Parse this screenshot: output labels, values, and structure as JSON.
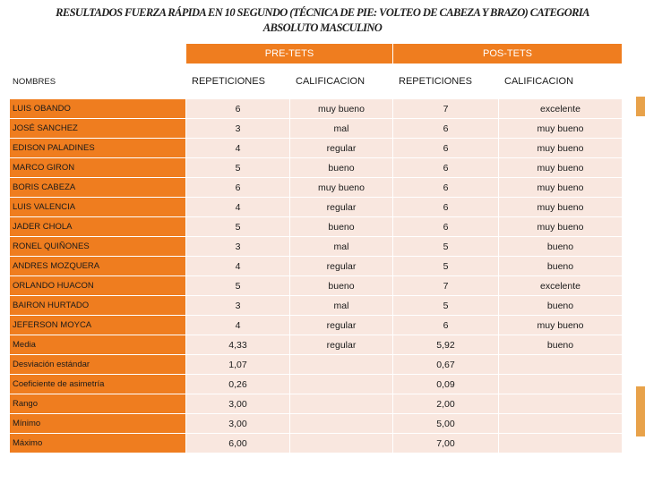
{
  "title_line1": "RESULTADOS FUERZA RÁPIDA EN 10 SEGUNDO (TÉCNICA DE PIE: VOLTEO DE CABEZA Y BRAZO) CATEGORIA",
  "title_line2": "ABSOLUTO MASCULINO",
  "header": {
    "pre": "PRE-TETS",
    "pos": "POS-TETS",
    "nombres": "NOMBRES",
    "pre_rep": "REPETICIONES",
    "pre_cal": "CALIFICACION",
    "pos_rep": "REPETICIONES",
    "pos_cal": "CALIFICACION"
  },
  "rows": [
    {
      "name": "LUIS OBANDO",
      "pre_rep": "6",
      "pre_cal": "muy bueno",
      "pos_rep": "7",
      "pos_cal": "excelente"
    },
    {
      "name": "JOSÉ SANCHEZ",
      "pre_rep": "3",
      "pre_cal": "mal",
      "pos_rep": "6",
      "pos_cal": "muy bueno"
    },
    {
      "name": "EDISON PALADINES",
      "pre_rep": "4",
      "pre_cal": "regular",
      "pos_rep": "6",
      "pos_cal": "muy bueno"
    },
    {
      "name": "MARCO GIRON",
      "pre_rep": "5",
      "pre_cal": "bueno",
      "pos_rep": "6",
      "pos_cal": "muy bueno"
    },
    {
      "name": "BORIS CABEZA",
      "pre_rep": "6",
      "pre_cal": "muy bueno",
      "pos_rep": "6",
      "pos_cal": "muy bueno"
    },
    {
      "name": "LUIS VALENCIA",
      "pre_rep": "4",
      "pre_cal": "regular",
      "pos_rep": "6",
      "pos_cal": "muy bueno"
    },
    {
      "name": "JADER CHOLA",
      "pre_rep": "5",
      "pre_cal": "bueno",
      "pos_rep": "6",
      "pos_cal": "muy bueno"
    },
    {
      "name": "RONEL QUIÑONES",
      "pre_rep": "3",
      "pre_cal": "mal",
      "pos_rep": "5",
      "pos_cal": "bueno"
    },
    {
      "name": "ANDRES MOZQUERA",
      "pre_rep": "4",
      "pre_cal": "regular",
      "pos_rep": "5",
      "pos_cal": "bueno"
    },
    {
      "name": "ORLANDO HUACON",
      "pre_rep": "5",
      "pre_cal": "bueno",
      "pos_rep": "7",
      "pos_cal": "excelente"
    },
    {
      "name": "BAIRON HURTADO",
      "pre_rep": "3",
      "pre_cal": "mal",
      "pos_rep": "5",
      "pos_cal": "bueno"
    },
    {
      "name": "JEFERSON MOYCA",
      "pre_rep": "4",
      "pre_cal": "regular",
      "pos_rep": "6",
      "pos_cal": "muy bueno"
    }
  ],
  "stats": [
    {
      "name": "Media",
      "pre_rep": "4,33",
      "pre_cal": "regular",
      "pos_rep": "5,92",
      "pos_cal": "bueno"
    },
    {
      "name": "Desviación estándar",
      "pre_rep": "1,07",
      "pre_cal": "",
      "pos_rep": "0,67",
      "pos_cal": ""
    },
    {
      "name": "Coeficiente de asimetría",
      "pre_rep": "0,26",
      "pre_cal": "",
      "pos_rep": "0,09",
      "pos_cal": ""
    },
    {
      "name": "Rango",
      "pre_rep": "3,00",
      "pre_cal": "",
      "pos_rep": "2,00",
      "pos_cal": ""
    },
    {
      "name": "Mínimo",
      "pre_rep": "3,00",
      "pre_cal": "",
      "pos_rep": "5,00",
      "pos_cal": ""
    },
    {
      "name": "Máximo",
      "pre_rep": "6,00",
      "pre_cal": "",
      "pos_rep": "7,00",
      "pos_cal": ""
    }
  ],
  "colors": {
    "header_orange": "#ef7d1f",
    "row_light": "#f9e7df",
    "row_mid": "#f4d3c4",
    "accent_bar": "#e8a24a"
  }
}
